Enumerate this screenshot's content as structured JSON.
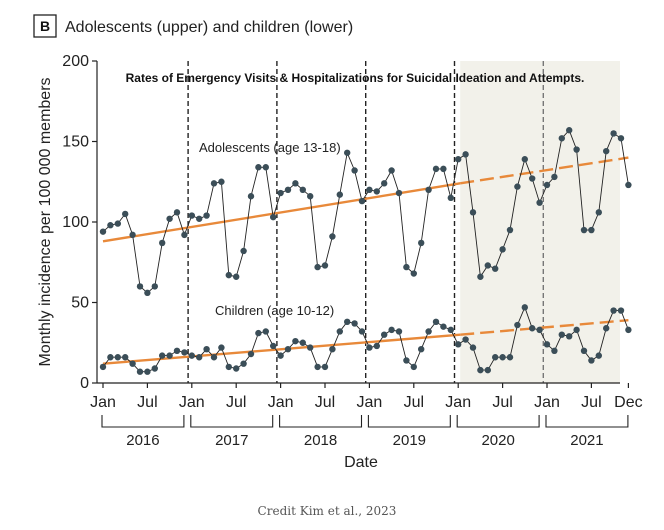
{
  "figure": {
    "panel_letter": "B",
    "panel_title": "Adolescents (upper) and children (lower)",
    "credit": "Credit Kim et al., 2023"
  },
  "chart_data": {
    "type": "line",
    "title": "Rates of Emergency Visits & Hospitalizations for Suicidal Ideation and Attempts.",
    "xlabel": "Date",
    "ylabel": "Monthly incidence per 100 000 members",
    "ylim": [
      0,
      200
    ],
    "yticks": [
      0,
      50,
      100,
      150,
      200
    ],
    "x_tick_labels": [
      "Jan",
      "Jul",
      "Jan",
      "Jul",
      "Jan",
      "Jul",
      "Jan",
      "Jul",
      "Jan",
      "Jul",
      "Jan",
      "Jul",
      "Dec"
    ],
    "x_tick_months": [
      1,
      7,
      13,
      19,
      25,
      31,
      37,
      43,
      49,
      55,
      61,
      67,
      72
    ],
    "years": [
      "2016",
      "2017",
      "2018",
      "2019",
      "2020",
      "2021"
    ],
    "grid": false,
    "shaded_region_months": [
      49,
      72
    ],
    "shaded_color": "#f2f1ea",
    "series": [
      {
        "name": "Adolescents (age 13-18)",
        "color": "#222222",
        "marker_color": "#3b4e58",
        "values": [
          94,
          98,
          99,
          105,
          92,
          60,
          56,
          60,
          87,
          102,
          106,
          92,
          104,
          102,
          104,
          124,
          125,
          67,
          66,
          82,
          116,
          134,
          134,
          103,
          118,
          120,
          124,
          120,
          116,
          72,
          73,
          91,
          117,
          143,
          132,
          113,
          120,
          119,
          124,
          132,
          118,
          72,
          68,
          87,
          120,
          133,
          133,
          115,
          139,
          142,
          106,
          66,
          73,
          71,
          83,
          95,
          122,
          139,
          127,
          112,
          123,
          128,
          152,
          157,
          145,
          95,
          95,
          106,
          144,
          155,
          152,
          123
        ]
      },
      {
        "name": "Children (age 10-12)",
        "color": "#222222",
        "marker_color": "#3b4e58",
        "values": [
          10,
          16,
          16,
          16,
          12,
          7,
          7,
          9,
          17,
          17,
          20,
          19,
          17,
          16,
          21,
          16,
          22,
          10,
          9,
          12,
          18,
          31,
          32,
          23,
          17,
          21,
          26,
          25,
          22,
          10,
          10,
          21,
          32,
          38,
          37,
          32,
          22,
          23,
          30,
          33,
          32,
          14,
          10,
          21,
          32,
          38,
          35,
          33,
          24,
          27,
          22,
          8,
          8,
          16,
          16,
          16,
          36,
          47,
          34,
          33,
          24,
          20,
          30,
          29,
          33,
          20,
          14,
          17,
          34,
          45,
          45,
          33
        ]
      }
    ],
    "trend_lines": [
      {
        "series": "Adolescents (age 13-18)",
        "start": 88,
        "end_pre": 124,
        "end_projected": 140,
        "color": "#e8893a"
      },
      {
        "series": "Children (age 10-12)",
        "start": 12,
        "end_pre": 30,
        "end_projected": 39,
        "color": "#e8893a"
      }
    ],
    "vertical_dashed_months": [
      12.5,
      24.5,
      36.5,
      48.5,
      60.5
    ]
  }
}
